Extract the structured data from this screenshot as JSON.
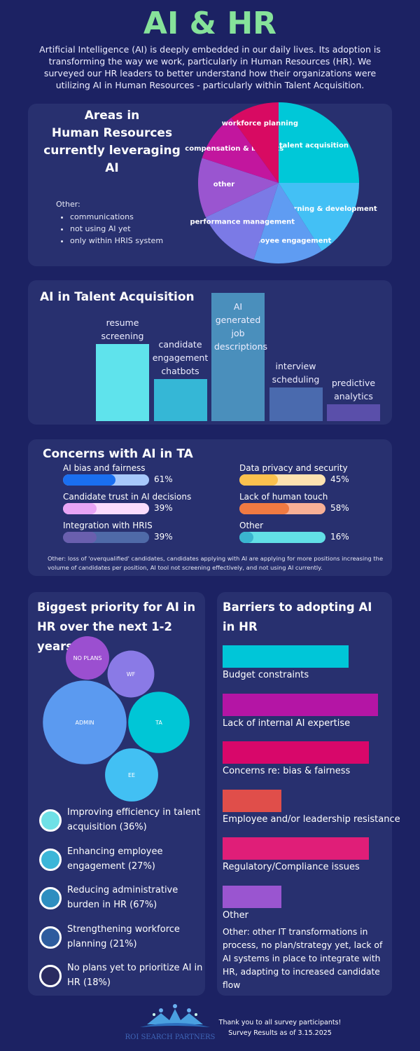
{
  "header": {
    "title": "AI & HR",
    "intro": "Artificial Intelligence (AI) is deeply embedded in our daily lives. Its adoption is transforming the way we work, particularly in Human Resources (HR). We surveyed our HR leaders to better understand how their organizations were utilizing AI in Human Resources - particularly within Talent Acquisition."
  },
  "areas": {
    "title_lines": [
      "Areas in",
      "Human Resources",
      "currently leveraging",
      "AI"
    ],
    "other_label": "Other:",
    "other_items": [
      "communications",
      "not using AI yet",
      "only within HRIS system"
    ]
  },
  "chart_data": [
    {
      "type": "pie",
      "title": "Areas in Human Resources currently leveraging AI",
      "categories": [
        "talent acquisition",
        "learning & development",
        "employee engagement",
        "performance management",
        "other",
        "compensation & benefits",
        "workforce planning"
      ],
      "values": [
        25,
        16,
        14,
        13,
        12,
        10,
        10
      ],
      "colors": [
        "#00c8d8",
        "#43c0f5",
        "#5f9cf2",
        "#7b7ae6",
        "#9a55d0",
        "#c2169e",
        "#d80a62"
      ]
    },
    {
      "type": "bar",
      "title": "AI in Talent Acquisition",
      "categories": [
        "resume screening",
        "candidate engagement chatbots",
        "AI generated job descriptions",
        "interview scheduling",
        "predictive analytics"
      ],
      "values": [
        60,
        33,
        100,
        26,
        13
      ],
      "colors": [
        "#5fe3ec",
        "#35b7d6",
        "#4a8fbc",
        "#4a6aae",
        "#5a4faa"
      ]
    },
    {
      "type": "bar",
      "orientation": "horizontal",
      "title": "Concerns with AI in TA",
      "categories": [
        "AI bias and fairness",
        "Candidate trust in AI decisions",
        "Integration with HRIS",
        "Data privacy and security",
        "Lack of human touch",
        "Other"
      ],
      "values": [
        61,
        39,
        39,
        45,
        58,
        16
      ],
      "value_labels": [
        "61%",
        "39%",
        "39%",
        "45%",
        "58%",
        "16%"
      ],
      "fill_colors": [
        "#1a6ff0",
        "#e8a4f5",
        "#6a5fae",
        "#fbc14e",
        "#f07a42",
        "#3ab5cf"
      ],
      "track_colors": [
        "#a7c8fb",
        "#fbdcfc",
        "#4f6aa8",
        "#fde2b0",
        "#f7b096",
        "#62dfe6"
      ],
      "note": "Other: loss of 'overqualified' candidates, candidates applying with AI are applying for more positions increasing the volume of candidates per position, AI tool not screening effectively, and not using AI currently."
    },
    {
      "type": "bubble",
      "title": "Biggest priority for AI in HR over the next 1-2 years",
      "categories": [
        "NO PLANS",
        "WF",
        "ADMIN",
        "TA",
        "EE"
      ],
      "values": [
        18,
        21,
        67,
        36,
        27
      ],
      "colors": [
        "#9b4fd0",
        "#8a7ae6",
        "#5b9af0",
        "#00c6d6",
        "#42c0f3"
      ]
    },
    {
      "type": "bar",
      "orientation": "horizontal",
      "title": "Barriers to adopting AI in HR",
      "categories": [
        "Budget constraints",
        "Lack of internal AI expertise",
        "Concerns re: bias & fairness",
        "Employee and/or leadership resistance",
        "Regulatory/Compliance issues",
        "Other"
      ],
      "values": [
        81,
        100,
        94,
        38,
        94,
        38
      ],
      "colors": [
        "#00c6d8",
        "#b415a5",
        "#d8076a",
        "#e04e4a",
        "#e01e78",
        "#9a55d0"
      ]
    }
  ],
  "ta": {
    "title": "AI in Talent Acquisition"
  },
  "concerns": {
    "title": "Concerns with AI in TA"
  },
  "priority": {
    "title": "Biggest priority for AI in HR over the next 1-2 years",
    "items": [
      {
        "label": "Improving efficiency in talent acquisition (36%)",
        "color": "#6fe0e6"
      },
      {
        "label": "Enhancing employee engagement (27%)",
        "color": "#3cb6d8"
      },
      {
        "label": "Reducing administrative burden in HR (67%)",
        "color": "#2e8ec0"
      },
      {
        "label": "Strengthening workforce planning (21%)",
        "color": "#2e5c9e"
      },
      {
        "label": "No plans yet to prioritize AI in HR (18%)",
        "color": "#2a2b60"
      }
    ]
  },
  "barriers": {
    "title": "Barriers to adopting AI in HR",
    "note": "Other: other IT transformations in process, no plan/strategy yet, lack of AI systems in place to integrate with HR, adapting to increased candidate flow"
  },
  "footer": {
    "logo_text": "ROI SEARCH PARTNERS",
    "thanks": "Thank you to all survey participants!",
    "date": "Survey Results as of 3.15.2025"
  }
}
